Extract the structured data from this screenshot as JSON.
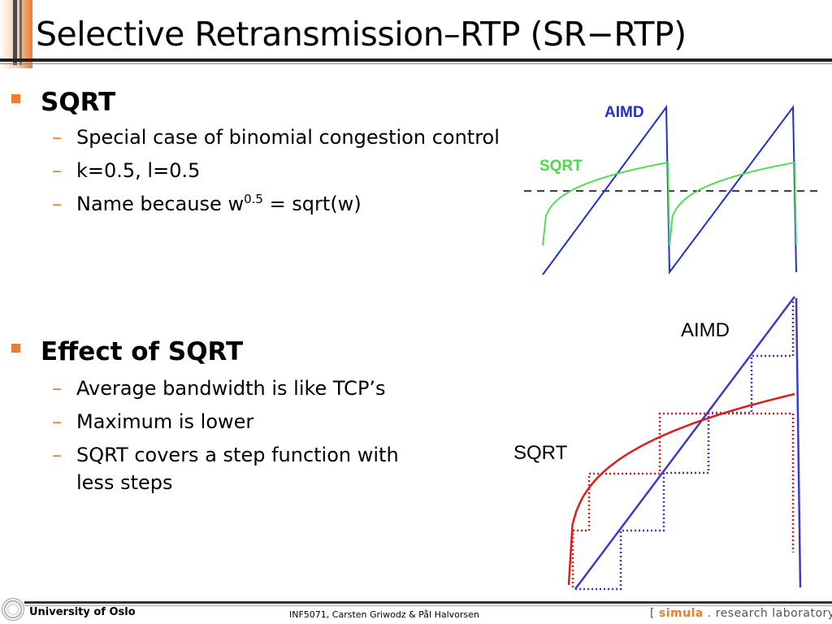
{
  "slide": {
    "title": "Selective Retransmission–RTP (SR−RTP)"
  },
  "section1": {
    "heading": "SQRT",
    "items": [
      "Special case of binomial congestion control",
      "k=0.5, l=0.5"
    ],
    "name_item": {
      "prefix": "Name because w",
      "sup": "0.5",
      "suffix": " = sqrt(w)"
    }
  },
  "section2": {
    "heading": "Effect of SQRT",
    "items": [
      "Average bandwidth is like TCP’s",
      "Maximum is lower",
      "SQRT covers a step function with",
      "less steps"
    ]
  },
  "figure_top": {
    "aimd_label": "AIMD",
    "sqrt_label": "SQRT",
    "colors": {
      "aimd": "#1f2fd0",
      "sqrt": "#44dd44",
      "average": "#000000"
    }
  },
  "figure_bottom": {
    "aimd_label": "AIMD",
    "sqrt_label": "SQRT",
    "colors": {
      "aimd": "#3a3ad0",
      "sqrt": "#dd1c1c"
    }
  },
  "footer": {
    "university": "University of Oslo",
    "course": "INF5071, Carsten Griwodz & Pål Halvorsen",
    "lab_open": "[ ",
    "lab_simula": "simula",
    "lab_rest": " . research laboratory ]"
  },
  "icons": {
    "logo": "university-seal-icon",
    "bullet": "square-bullet-icon",
    "dash": "dash-icon"
  }
}
